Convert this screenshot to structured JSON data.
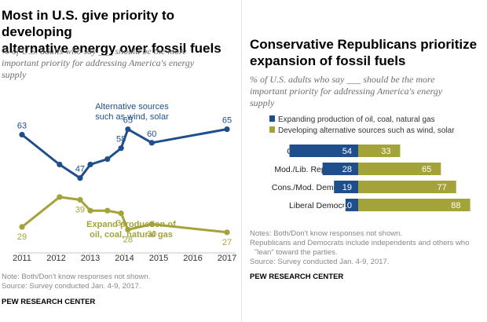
{
  "left": {
    "title_line1": "Most in U.S. give priority to developing",
    "title_line2": "alternative energy over fossil fuels",
    "subtitle_line1": "% of U.S. adults who say ___ should be the more",
    "subtitle_line2": "important priority for addressing America's energy",
    "subtitle_line3": "supply",
    "notes_line1": "Note: Both/Don't know responses not shown.",
    "notes_line2": "Source: Survey conducted Jan. 4-9, 2017.",
    "brand": "PEW RESEARCH CENTER"
  },
  "right": {
    "title_line1": "Conservative Republicans prioritize",
    "title_line2": "expansion of fossil fuels",
    "subtitle_line1": "% of U.S. adults who say ___ should be the more",
    "subtitle_line2": "important priority for addressing America's energy",
    "subtitle_line3": "supply",
    "notes_line1": "Notes: Both/Don't know responses not shown.",
    "notes_line2": "Republicans and Democrats include independents and others who",
    "notes_line3": "\"lean\" toward the parties.",
    "notes_line4": "Source: Survey conducted Jan. 4-9, 2017.",
    "brand": "PEW RESEARCH CENTER"
  },
  "chart_data": [
    {
      "type": "line",
      "x_ticks": [
        "2011",
        "2012",
        "2013",
        "2014",
        "2015",
        "2016",
        "2017"
      ],
      "series": [
        {
          "name": "Alternative sources such as wind, solar",
          "label_lines": [
            "Alternative sources",
            "such as wind, solar"
          ],
          "color": "#1f4e8c",
          "points": [
            {
              "x": 2011.0,
              "y": 63,
              "label": "63"
            },
            {
              "x": 2012.1,
              "y": 52,
              "label": ""
            },
            {
              "x": 2012.7,
              "y": 47,
              "label": "47"
            },
            {
              "x": 2013.0,
              "y": 52,
              "label": ""
            },
            {
              "x": 2013.5,
              "y": 54,
              "label": ""
            },
            {
              "x": 2013.9,
              "y": 58,
              "label": "58"
            },
            {
              "x": 2014.1,
              "y": 65,
              "label": "65"
            },
            {
              "x": 2014.8,
              "y": 60,
              "label": "60"
            },
            {
              "x": 2017.0,
              "y": 65,
              "label": "65"
            }
          ]
        },
        {
          "name": "Expand production of oil, coal, natural gas",
          "label_lines": [
            "Expand production of",
            "oil, coal, natural gas"
          ],
          "color": "#a3a33a",
          "points": [
            {
              "x": 2011.0,
              "y": 29,
              "label": "29"
            },
            {
              "x": 2012.1,
              "y": 40,
              "label": ""
            },
            {
              "x": 2012.7,
              "y": 39,
              "label": "39"
            },
            {
              "x": 2013.0,
              "y": 35,
              "label": ""
            },
            {
              "x": 2013.5,
              "y": 35,
              "label": ""
            },
            {
              "x": 2013.9,
              "y": 34,
              "label": "34"
            },
            {
              "x": 2014.1,
              "y": 28,
              "label": "28"
            },
            {
              "x": 2014.8,
              "y": 30,
              "label": "30"
            },
            {
              "x": 2017.0,
              "y": 27,
              "label": "27"
            }
          ]
        }
      ],
      "ylim": [
        20,
        75
      ],
      "grid": false
    },
    {
      "type": "bar",
      "stacked": true,
      "orientation": "horizontal",
      "categories": [
        "Cons. Republican",
        "Mod./Lib. Republican",
        "Cons./Mod. Democrat",
        "Liberal Democrat"
      ],
      "series": [
        {
          "name": "Expanding production of oil, coal, natural gas",
          "color": "#1f4e8c",
          "values": [
            54,
            28,
            19,
            10
          ]
        },
        {
          "name": "Developing alternative sources such as wind, solar",
          "color": "#a3a33a",
          "values": [
            33,
            65,
            77,
            88
          ]
        }
      ],
      "legend": "top-left",
      "xlim": [
        0,
        100
      ]
    }
  ]
}
